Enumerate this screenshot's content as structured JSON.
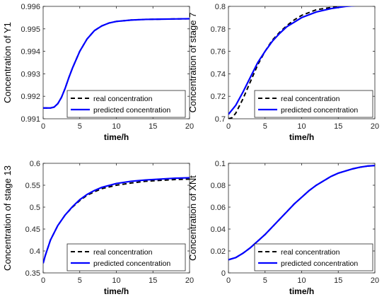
{
  "chart_data": [
    {
      "type": "line",
      "ylabel": "Concentration of Y1",
      "xlabel": "time/h",
      "xlim": [
        0,
        20
      ],
      "ylim": [
        0.991,
        0.996
      ],
      "xticks": [
        "0",
        "5",
        "10",
        "15",
        "20"
      ],
      "yticks": [
        "0.991",
        "0.992",
        "0.993",
        "0.994",
        "0.995",
        "0.996"
      ],
      "legend_position": "bottom-right",
      "series": [
        {
          "name": "real concentration",
          "style": "dashed",
          "color": "#000000",
          "x": [
            0,
            1,
            1.5,
            2,
            2.5,
            3,
            3.5,
            4,
            5,
            6,
            7,
            8,
            9,
            10,
            12,
            14,
            16,
            18,
            20
          ],
          "y": [
            0.99148,
            0.99148,
            0.99152,
            0.99167,
            0.99195,
            0.99235,
            0.99282,
            0.99325,
            0.994,
            0.99455,
            0.99492,
            0.99513,
            0.99526,
            0.99533,
            0.99539,
            0.99542,
            0.99543,
            0.99544,
            0.99545
          ]
        },
        {
          "name": "predicted concentration",
          "style": "solid",
          "color": "#0000ff",
          "x": [
            0,
            1,
            1.5,
            2,
            2.5,
            3,
            3.5,
            4,
            5,
            6,
            7,
            8,
            9,
            10,
            12,
            14,
            16,
            18,
            20
          ],
          "y": [
            0.99148,
            0.99148,
            0.99152,
            0.99167,
            0.99195,
            0.99235,
            0.99282,
            0.99325,
            0.994,
            0.99455,
            0.99492,
            0.99513,
            0.99526,
            0.99533,
            0.99539,
            0.99542,
            0.99543,
            0.99544,
            0.99545
          ]
        }
      ]
    },
    {
      "type": "line",
      "ylabel": "Concentration of stage 7",
      "xlabel": "time/h",
      "xlim": [
        0,
        20
      ],
      "ylim": [
        0.7,
        0.8
      ],
      "xticks": [
        "0",
        "5",
        "10",
        "15",
        "20"
      ],
      "yticks": [
        "0.7",
        "0.72",
        "0.74",
        "0.76",
        "0.78",
        "0.8"
      ],
      "legend_position": "bottom-right",
      "series": [
        {
          "name": "real concentration",
          "style": "dashed",
          "color": "#000000",
          "x": [
            0,
            0.5,
            1,
            2,
            3,
            4,
            5,
            6,
            7,
            8,
            9,
            10,
            12,
            14,
            16,
            18,
            20
          ],
          "y": [
            0.7,
            0.701,
            0.705,
            0.718,
            0.733,
            0.748,
            0.76,
            0.77,
            0.777,
            0.783,
            0.788,
            0.792,
            0.797,
            0.799,
            0.801,
            0.802,
            0.802
          ]
        },
        {
          "name": "predicted concentration",
          "style": "solid",
          "color": "#0000ff",
          "x": [
            0,
            0.5,
            1,
            2,
            3,
            4,
            5,
            6,
            7,
            8,
            9,
            10,
            12,
            14,
            16,
            18,
            20
          ],
          "y": [
            0.704,
            0.708,
            0.712,
            0.724,
            0.737,
            0.75,
            0.76,
            0.769,
            0.776,
            0.782,
            0.786,
            0.79,
            0.795,
            0.798,
            0.8,
            0.801,
            0.802
          ]
        }
      ]
    },
    {
      "type": "line",
      "ylabel": "Concentration of stage 13",
      "xlabel": "time/h",
      "xlim": [
        0,
        20
      ],
      "ylim": [
        0.35,
        0.6
      ],
      "xticks": [
        "0",
        "5",
        "10",
        "15",
        "20"
      ],
      "yticks": [
        "0.35",
        "0.4",
        "0.45",
        "0.5",
        "0.55",
        "0.6"
      ],
      "legend_position": "bottom-right",
      "series": [
        {
          "name": "real concentration",
          "style": "dashed",
          "color": "#000000",
          "x": [
            0,
            0.3,
            0.7,
            1,
            2,
            3,
            4,
            5,
            6,
            7,
            8,
            10,
            12,
            14,
            16,
            18,
            20
          ],
          "y": [
            0.372,
            0.39,
            0.41,
            0.425,
            0.458,
            0.482,
            0.5,
            0.515,
            0.527,
            0.535,
            0.542,
            0.55,
            0.555,
            0.559,
            0.561,
            0.563,
            0.564
          ]
        },
        {
          "name": "predicted concentration",
          "style": "solid",
          "color": "#0000ff",
          "x": [
            0,
            0.3,
            0.7,
            1,
            2,
            3,
            4,
            5,
            6,
            7,
            8,
            10,
            12,
            14,
            16,
            18,
            20
          ],
          "y": [
            0.372,
            0.39,
            0.41,
            0.425,
            0.458,
            0.482,
            0.501,
            0.517,
            0.529,
            0.538,
            0.545,
            0.554,
            0.559,
            0.562,
            0.564,
            0.566,
            0.567
          ]
        }
      ]
    },
    {
      "type": "line",
      "ylabel": "Concentration of XNt",
      "xlabel": "time/h",
      "xlim": [
        0,
        20
      ],
      "ylim": [
        0,
        0.1
      ],
      "xticks": [
        "0",
        "5",
        "10",
        "15",
        "20"
      ],
      "yticks": [
        "0",
        "0.02",
        "0.04",
        "0.06",
        "0.08",
        "0.1"
      ],
      "legend_position": "bottom-right",
      "series": [
        {
          "name": "real concentration",
          "style": "dashed",
          "color": "#000000",
          "x": [
            0,
            1,
            2,
            3,
            4,
            5,
            6,
            7,
            8,
            9,
            10,
            11,
            12,
            13,
            14,
            15,
            16,
            17,
            18,
            19,
            20
          ],
          "y": [
            0.012,
            0.014,
            0.018,
            0.023,
            0.029,
            0.035,
            0.042,
            0.049,
            0.056,
            0.063,
            0.069,
            0.075,
            0.08,
            0.084,
            0.088,
            0.091,
            0.093,
            0.095,
            0.0965,
            0.0975,
            0.098
          ]
        },
        {
          "name": "predicted concentration",
          "style": "solid",
          "color": "#0000ff",
          "x": [
            0,
            1,
            2,
            3,
            4,
            5,
            6,
            7,
            8,
            9,
            10,
            11,
            12,
            13,
            14,
            15,
            16,
            17,
            18,
            19,
            20
          ],
          "y": [
            0.012,
            0.014,
            0.018,
            0.023,
            0.029,
            0.035,
            0.042,
            0.049,
            0.056,
            0.063,
            0.069,
            0.075,
            0.08,
            0.084,
            0.088,
            0.091,
            0.093,
            0.095,
            0.0965,
            0.0975,
            0.098
          ]
        }
      ]
    }
  ]
}
